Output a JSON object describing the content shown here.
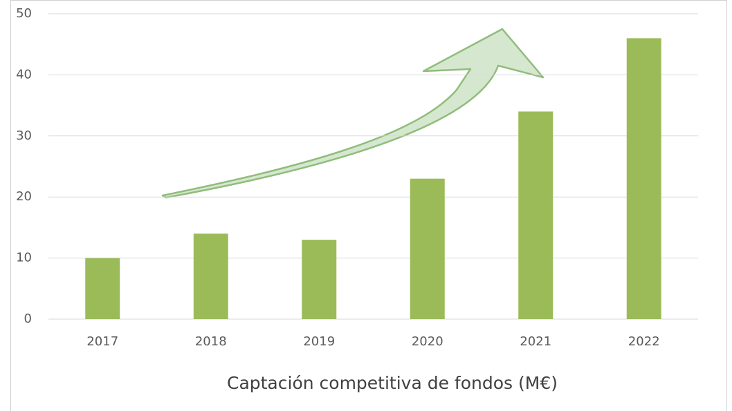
{
  "chart_data": {
    "type": "bar",
    "x_label": "Captación competitiva de fondos (M€)",
    "categories": [
      "2017",
      "2018",
      "2019",
      "2020",
      "2021",
      "2022"
    ],
    "values": [
      10,
      14,
      13,
      23,
      34,
      46
    ],
    "color": "#9bbb59",
    "ylim": [
      0,
      50
    ],
    "yticks": [
      0,
      10,
      20,
      30,
      40,
      50
    ],
    "grid": true
  }
}
